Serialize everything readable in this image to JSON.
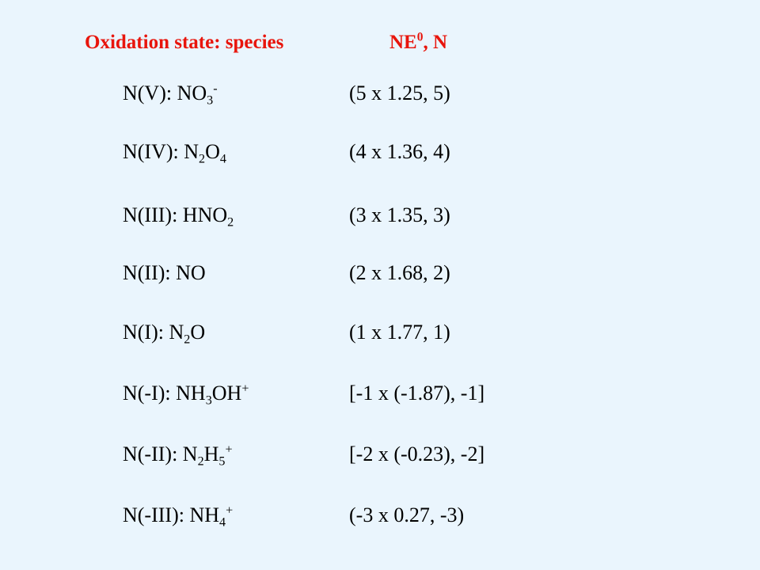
{
  "header": {
    "species": "Oxidation state: species",
    "value": [
      {
        "text": "NE"
      },
      {
        "sup": "0"
      },
      {
        "text": ", N"
      }
    ]
  },
  "rows": [
    {
      "species": [
        {
          "text": "N(V): NO"
        },
        {
          "sub": "3"
        },
        {
          "sup": "-"
        }
      ],
      "value": "(5 x 1.25, 5)"
    },
    {
      "species": [
        {
          "text": "N(IV): N"
        },
        {
          "sub": "2"
        },
        {
          "text": "O"
        },
        {
          "sub": "4"
        }
      ],
      "value": "(4 x 1.36, 4)"
    },
    {
      "species": [
        {
          "text": "N(III): HNO"
        },
        {
          "sub": "2"
        }
      ],
      "value": "(3 x 1.35, 3)"
    },
    {
      "species": [
        {
          "text": "N(II): NO"
        }
      ],
      "value": "(2 x 1.68, 2)"
    },
    {
      "species": [
        {
          "text": "N(I): N"
        },
        {
          "sub": "2"
        },
        {
          "text": "O"
        }
      ],
      "value": "(1 x 1.77, 1)"
    },
    {
      "species": [
        {
          "text": "N(-I): NH"
        },
        {
          "sub": "3"
        },
        {
          "text": "OH"
        },
        {
          "sup": "+"
        }
      ],
      "value": "[-1 x (-1.87), -1]"
    },
    {
      "species": [
        {
          "text": "N(-II): N"
        },
        {
          "sub": "2"
        },
        {
          "text": "H"
        },
        {
          "sub": "5"
        },
        {
          "sup": "+"
        }
      ],
      "value": "[-2 x (-0.23), -2]"
    },
    {
      "species": [
        {
          "text": "N(-III): NH"
        },
        {
          "sub": "4"
        },
        {
          "sup": "+"
        }
      ],
      "value": "(-3 x 0.27, -3)"
    }
  ]
}
